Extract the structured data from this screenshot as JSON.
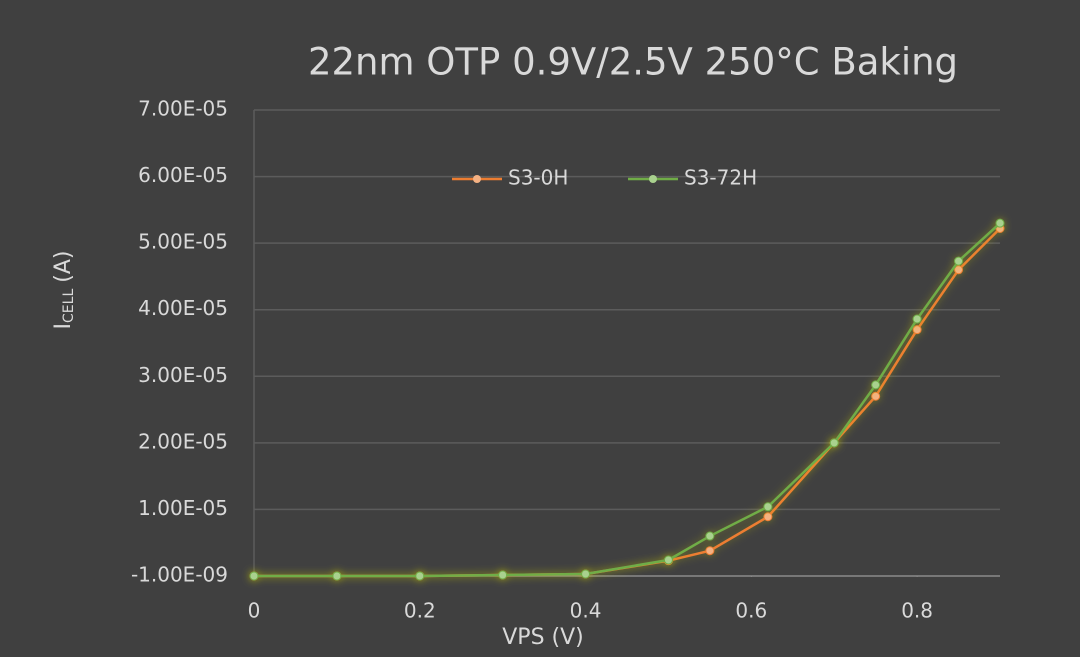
{
  "chart_data": {
    "type": "line",
    "title": "22nm OTP 0.9V/2.5V 250°C Baking",
    "x_label": "VPS (V)",
    "y_label": {
      "main": "I",
      "sub": "CELL",
      "unit": "(A)"
    },
    "x": [
      0,
      0.1,
      0.2,
      0.3,
      0.4,
      0.5,
      0.55,
      0.62,
      0.7,
      0.75,
      0.8,
      0.85,
      0.9
    ],
    "series": [
      {
        "name": "S3-0H",
        "color": "#ed7d31",
        "values": [
          0,
          0,
          0,
          1.5e-07,
          3e-07,
          2.3e-06,
          3.8e-06,
          8.9e-06,
          2e-05,
          2.7e-05,
          3.7e-05,
          4.6e-05,
          5.22e-05
        ]
      },
      {
        "name": "S3-72H",
        "color": "#70ad47",
        "values": [
          0,
          0,
          0,
          1.5e-07,
          3e-07,
          2.4e-06,
          6e-06,
          1.04e-05,
          2e-05,
          2.87e-05,
          3.86e-05,
          4.73e-05,
          5.3e-05
        ]
      }
    ],
    "xlim": [
      0,
      0.9
    ],
    "xticks": [
      0,
      0.2,
      0.4,
      0.6,
      0.8
    ],
    "ylim": [
      -1e-09,
      7e-05
    ],
    "yticks": [
      {
        "value": -1e-09,
        "label": "-1.00E-09"
      },
      {
        "value": 1e-05,
        "label": "1.00E-05"
      },
      {
        "value": 2e-05,
        "label": "2.00E-05"
      },
      {
        "value": 3e-05,
        "label": "3.00E-05"
      },
      {
        "value": 4e-05,
        "label": "4.00E-05"
      },
      {
        "value": 5e-05,
        "label": "5.00E-05"
      },
      {
        "value": 6e-05,
        "label": "6.00E-05"
      },
      {
        "value": 7e-05,
        "label": "7.00E-05"
      }
    ],
    "grid": true,
    "legend": "top",
    "glow": true
  }
}
